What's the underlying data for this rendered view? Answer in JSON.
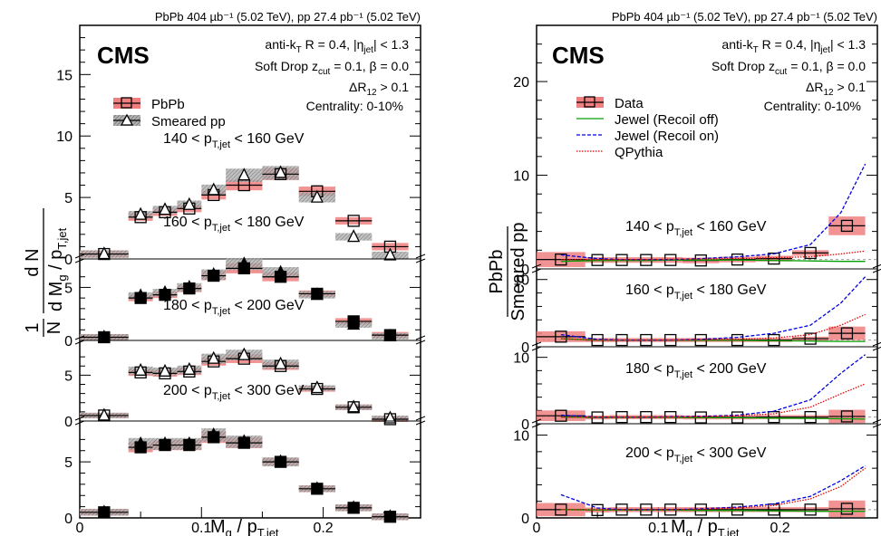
{
  "header": {
    "left": "PbPb 404 µb⁻¹ (5.02 TeV), pp 27.4 pb⁻¹ (5.02 TeV)",
    "right": "PbPb 404 µb⁻¹ (5.02 TeV), pp 27.4 pb⁻¹ (5.02 TeV)"
  },
  "cms_label": "CMS",
  "info_lines": [
    "anti-kT R = 0.4, |ηjet| < 1.3",
    "Soft Drop zcut = 0.1, β = 0.0",
    "ΔR12 > 0.1",
    "Centrality: 0-10%"
  ],
  "chart_data": [
    {
      "type": "scatter",
      "panel": "left",
      "xlabel": "Mg / pT,jet",
      "ylabel": "1/N dN/d(Mg/pT,jet)",
      "xlim": [
        0,
        0.28
      ],
      "x_ticks": [
        "0",
        "0.1",
        "0.2"
      ],
      "legend": [
        "PbPb",
        "Smeared pp"
      ],
      "legend_placement": "top-left",
      "x": [
        0.02,
        0.05,
        0.07,
        0.09,
        0.11,
        0.135,
        0.165,
        0.195,
        0.225,
        0.255
      ],
      "subpanels": [
        {
          "label": "140 < pT,jet < 160 GeV",
          "ylim": [
            0,
            19
          ],
          "y_ticks": [
            "0",
            "5",
            "10",
            "15"
          ],
          "series": [
            {
              "name": "PbPb",
              "values": [
                0.4,
                3.4,
                3.8,
                4.1,
                5.2,
                6.0,
                6.9,
                5.5,
                3.1,
                1.0
              ]
            },
            {
              "name": "Smeared pp",
              "values": [
                0.4,
                3.6,
                4.0,
                4.4,
                5.6,
                6.8,
                7.0,
                5.0,
                1.8,
                0.3
              ]
            }
          ]
        },
        {
          "label": "160 < pT,jet < 180 GeV",
          "ylim": [
            0,
            7
          ],
          "y_ticks": [
            "0",
            "5"
          ],
          "series": [
            {
              "name": "PbPb",
              "values": [
                0.3,
                4.0,
                4.3,
                4.9,
                6.1,
                6.8,
                6.0,
                4.4,
                1.8,
                0.5
              ]
            },
            {
              "name": "Smeared pp",
              "values": [
                0.3,
                4.2,
                4.5,
                5.0,
                6.2,
                7.2,
                6.4,
                4.3,
                1.5,
                0.4
              ]
            }
          ]
        },
        {
          "label": "180 < pT,jet < 200 GeV",
          "ylim": [
            0,
            8
          ],
          "y_ticks": [
            "0",
            "5"
          ],
          "series": [
            {
              "name": "PbPb",
              "values": [
                0.6,
                5.3,
                5.2,
                5.4,
                6.5,
                6.8,
                6.0,
                3.5,
                1.5,
                0.2
              ]
            },
            {
              "name": "Smeared pp",
              "values": [
                0.6,
                5.5,
                5.4,
                5.6,
                6.8,
                7.2,
                6.2,
                3.6,
                1.5,
                0.3
              ]
            }
          ]
        },
        {
          "label": "200 < pT,jet < 300 GeV",
          "ylim": [
            0,
            8
          ],
          "y_ticks": [
            "0",
            "5"
          ],
          "series": [
            {
              "name": "PbPb",
              "values": [
                0.5,
                6.3,
                6.5,
                6.5,
                7.2,
                6.7,
                5.0,
                2.6,
                0.9,
                0.1
              ]
            },
            {
              "name": "Smeared pp",
              "values": [
                0.5,
                6.6,
                6.6,
                6.6,
                7.4,
                6.8,
                5.0,
                2.6,
                0.9,
                0.1
              ]
            }
          ]
        }
      ]
    },
    {
      "type": "line",
      "panel": "right",
      "xlabel": "Mg / pT,jet",
      "ylabel": "PbPb / Smeared pp",
      "xlim": [
        0,
        0.28
      ],
      "x_ticks": [
        "0",
        "0.1",
        "0.2"
      ],
      "legend": [
        "Data",
        "Jewel (Recoil off)",
        "Jewel (Recoil on)",
        "QPythia"
      ],
      "legend_placement": "top-left",
      "x": [
        0.02,
        0.05,
        0.07,
        0.09,
        0.11,
        0.135,
        0.165,
        0.195,
        0.225,
        0.255
      ],
      "model_x": [
        0.02,
        0.05,
        0.07,
        0.09,
        0.11,
        0.135,
        0.165,
        0.195,
        0.225,
        0.25,
        0.27
      ],
      "subpanels": [
        {
          "label": "140 < pT,jet < 160 GeV",
          "ylim": [
            0,
            26
          ],
          "y_ticks": [
            "0",
            "10",
            "20"
          ],
          "data": [
            1.0,
            0.95,
            0.95,
            0.95,
            0.95,
            0.9,
            1.0,
            1.1,
            1.7,
            4.6
          ],
          "models": [
            {
              "name": "Jewel (Recoil off)",
              "values": [
                0.8,
                0.9,
                0.9,
                0.9,
                0.95,
                0.95,
                0.95,
                0.9,
                0.85,
                0.8,
                0.8
              ]
            },
            {
              "name": "Jewel (Recoil on)",
              "values": [
                1.5,
                1.1,
                1.0,
                1.0,
                1.0,
                1.1,
                1.3,
                1.6,
                2.6,
                6.0,
                11.2
              ]
            },
            {
              "name": "QPythia",
              "values": [
                1.0,
                1.0,
                1.0,
                1.0,
                1.05,
                1.05,
                1.1,
                1.2,
                1.3,
                1.6,
                1.9
              ]
            }
          ]
        },
        {
          "label": "160 < pT,jet < 180 GeV",
          "ylim": [
            0,
            10.5
          ],
          "y_ticks": [
            "0",
            "10"
          ],
          "data": [
            1.5,
            1.0,
            1.0,
            1.0,
            1.0,
            1.0,
            1.0,
            1.0,
            1.2,
            2.0
          ],
          "models": [
            {
              "name": "Jewel (Recoil off)",
              "values": [
                1.2,
                1.0,
                1.0,
                1.0,
                1.0,
                0.95,
                0.95,
                0.9,
                0.85,
                0.8,
                0.8
              ]
            },
            {
              "name": "Jewel (Recoil on)",
              "values": [
                1.8,
                1.1,
                1.0,
                1.0,
                1.0,
                1.1,
                1.4,
                2.0,
                3.2,
                6.5,
                10.4
              ]
            },
            {
              "name": "QPythia",
              "values": [
                1.2,
                1.0,
                1.0,
                1.0,
                1.0,
                1.05,
                1.1,
                1.3,
                1.8,
                3.2,
                4.8
              ]
            }
          ]
        },
        {
          "label": "180 < pT,jet < 200 GeV",
          "ylim": [
            0,
            10.5
          ],
          "y_ticks": [
            "0",
            "10"
          ],
          "data": [
            1.2,
            0.95,
            1.0,
            1.0,
            1.0,
            0.95,
            0.95,
            1.0,
            1.0,
            1.1
          ],
          "models": [
            {
              "name": "Jewel (Recoil off)",
              "values": [
                1.0,
                0.95,
                0.95,
                0.95,
                0.95,
                0.9,
                0.9,
                0.85,
                0.8,
                0.75,
                0.7
              ]
            },
            {
              "name": "Jewel (Recoil on)",
              "values": [
                1.3,
                1.0,
                1.0,
                1.0,
                1.05,
                1.1,
                1.3,
                1.9,
                3.6,
                7.6,
                10.4
              ]
            },
            {
              "name": "QPythia",
              "values": [
                1.0,
                1.0,
                1.0,
                1.0,
                1.0,
                1.05,
                1.2,
                1.5,
                2.5,
                4.5,
                6.0
              ]
            }
          ]
        },
        {
          "label": "200 < pT,jet < 300 GeV",
          "ylim": [
            0,
            10.5
          ],
          "y_ticks": [
            "0",
            "10"
          ],
          "data": [
            1.0,
            0.95,
            1.0,
            1.0,
            1.0,
            1.0,
            1.0,
            1.0,
            1.0,
            1.1
          ],
          "models": [
            {
              "name": "Jewel (Recoil off)",
              "values": [
                1.0,
                0.95,
                0.95,
                0.95,
                0.95,
                0.9,
                0.9,
                0.85,
                0.8,
                0.8,
                0.8
              ]
            },
            {
              "name": "Jewel (Recoil on)",
              "values": [
                2.8,
                1.2,
                1.0,
                1.0,
                1.0,
                1.1,
                1.3,
                1.7,
                2.6,
                4.5,
                6.3
              ]
            },
            {
              "name": "QPythia",
              "values": [
                1.0,
                1.0,
                1.0,
                1.0,
                1.0,
                1.05,
                1.2,
                1.5,
                2.3,
                3.8,
                6.0
              ]
            }
          ]
        }
      ]
    }
  ],
  "colors": {
    "pbpb_band": "#f08080",
    "pp_band": "#808080",
    "recoil_off": "#00a000",
    "recoil_on": "#0000e0",
    "qpythia": "#e00000"
  }
}
